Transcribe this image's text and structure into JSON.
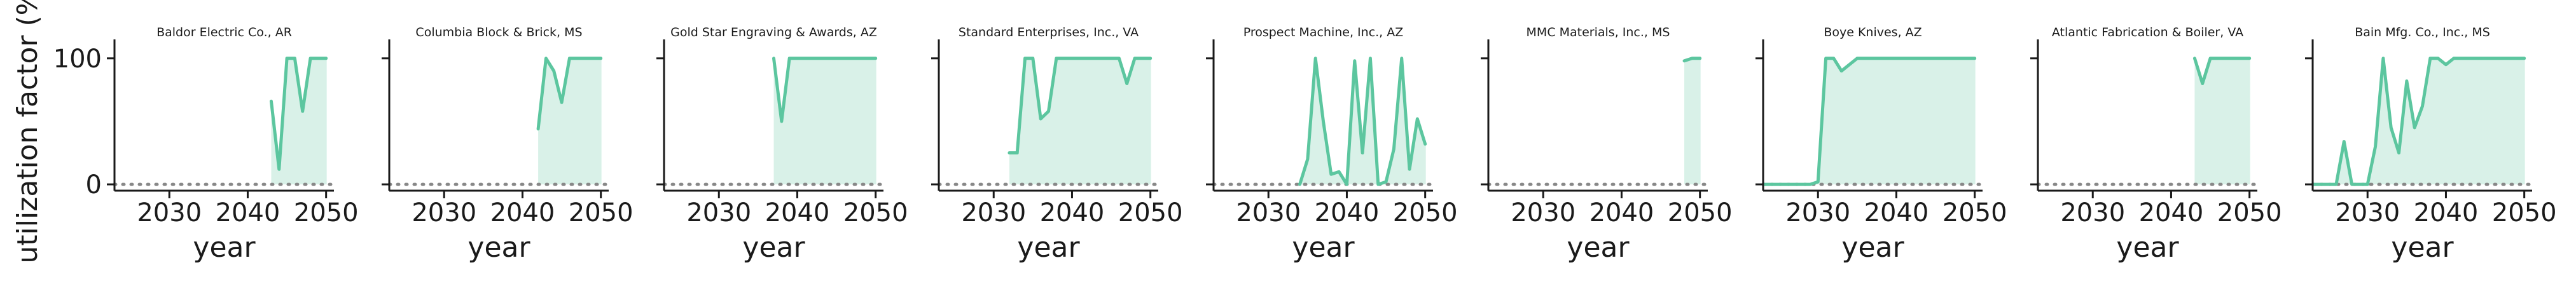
{
  "figure": {
    "ylabel": "utilization factor (%)",
    "line_color": "#5cc69f",
    "fill_color": "#d9f1e8",
    "zero_line_color": "#888888"
  },
  "chart_data": [
    {
      "type": "area",
      "title": "Baldor Electric Co., AR",
      "xlabel": "year",
      "xticks": [
        2030,
        2040,
        2050
      ],
      "yticks": [
        0,
        100
      ],
      "xlim": [
        2023,
        2051
      ],
      "ylim": [
        -5,
        112
      ],
      "x": [
        2043,
        2044,
        2045,
        2046,
        2047,
        2048,
        2049,
        2050
      ],
      "y": [
        66,
        12,
        100,
        100,
        58,
        100,
        100,
        100
      ]
    },
    {
      "type": "area",
      "title": "Columbia Block & Brick, MS",
      "xlabel": "year",
      "xticks": [
        2030,
        2040,
        2050
      ],
      "yticks": [
        0,
        100
      ],
      "xlim": [
        2023,
        2051
      ],
      "ylim": [
        -5,
        112
      ],
      "x": [
        2042,
        2043,
        2044,
        2045,
        2046,
        2047,
        2048,
        2049,
        2050
      ],
      "y": [
        44,
        100,
        90,
        65,
        100,
        100,
        100,
        100,
        100
      ]
    },
    {
      "type": "area",
      "title": "Gold Star Engraving & Awards, AZ",
      "xlabel": "year",
      "xticks": [
        2030,
        2040,
        2050
      ],
      "yticks": [
        0,
        100
      ],
      "xlim": [
        2023,
        2051
      ],
      "ylim": [
        -5,
        112
      ],
      "x": [
        2037,
        2038,
        2039,
        2040,
        2041,
        2042,
        2043,
        2044,
        2045,
        2046,
        2047,
        2048,
        2049,
        2050
      ],
      "y": [
        100,
        50,
        100,
        100,
        100,
        100,
        100,
        100,
        100,
        100,
        100,
        100,
        100,
        100
      ]
    },
    {
      "type": "area",
      "title": "Standard Enterprises, Inc., VA",
      "xlabel": "year",
      "xticks": [
        2030,
        2040,
        2050
      ],
      "yticks": [
        0,
        100
      ],
      "xlim": [
        2023,
        2051
      ],
      "ylim": [
        -5,
        112
      ],
      "x": [
        2032,
        2033,
        2034,
        2035,
        2036,
        2037,
        2038,
        2039,
        2040,
        2041,
        2042,
        2043,
        2044,
        2045,
        2046,
        2047,
        2048,
        2049,
        2050
      ],
      "y": [
        25,
        25,
        100,
        100,
        52,
        58,
        100,
        100,
        100,
        100,
        100,
        100,
        100,
        100,
        100,
        80,
        100,
        100,
        100
      ]
    },
    {
      "type": "area",
      "title": "Prospect Machine, Inc., AZ",
      "xlabel": "year",
      "xticks": [
        2030,
        2040,
        2050
      ],
      "yticks": [
        0,
        100
      ],
      "xlim": [
        2023,
        2051
      ],
      "ylim": [
        -5,
        112
      ],
      "x": [
        2034,
        2035,
        2036,
        2037,
        2038,
        2039,
        2040,
        2041,
        2042,
        2043,
        2044,
        2045,
        2046,
        2047,
        2048,
        2049,
        2050
      ],
      "y": [
        0,
        20,
        100,
        50,
        8,
        10,
        0,
        98,
        25,
        100,
        0,
        2,
        28,
        100,
        12,
        52,
        32
      ]
    },
    {
      "type": "area",
      "title": "MMC Materials, Inc., MS",
      "xlabel": "year",
      "xticks": [
        2030,
        2040,
        2050
      ],
      "yticks": [
        0,
        100
      ],
      "xlim": [
        2023,
        2051
      ],
      "ylim": [
        -5,
        112
      ],
      "x": [
        2048,
        2049,
        2050
      ],
      "y": [
        98,
        100,
        100
      ]
    },
    {
      "type": "area",
      "title": "Boye Knives, AZ",
      "xlabel": "year",
      "xticks": [
        2030,
        2040,
        2050
      ],
      "yticks": [
        0,
        100
      ],
      "xlim": [
        2023,
        2051
      ],
      "ylim": [
        -5,
        112
      ],
      "x": [
        2023,
        2024,
        2025,
        2026,
        2027,
        2028,
        2029,
        2030,
        2031,
        2032,
        2033,
        2034,
        2035,
        2036,
        2037,
        2038,
        2039,
        2040,
        2041,
        2042,
        2043,
        2044,
        2045,
        2046,
        2047,
        2048,
        2049,
        2050
      ],
      "y": [
        0,
        0,
        0,
        0,
        0,
        0,
        0,
        2,
        100,
        100,
        90,
        95,
        100,
        100,
        100,
        100,
        100,
        100,
        100,
        100,
        100,
        100,
        100,
        100,
        100,
        100,
        100,
        100
      ]
    },
    {
      "type": "area",
      "title": "Atlantic Fabrication & Boiler, VA",
      "xlabel": "year",
      "xticks": [
        2030,
        2040,
        2050
      ],
      "yticks": [
        0,
        100
      ],
      "xlim": [
        2023,
        2051
      ],
      "ylim": [
        -5,
        112
      ],
      "x": [
        2043,
        2044,
        2045,
        2046,
        2047,
        2048,
        2049,
        2050
      ],
      "y": [
        100,
        80,
        100,
        100,
        100,
        100,
        100,
        100
      ]
    },
    {
      "type": "area",
      "title": "Bain Mfg. Co., Inc., MS",
      "xlabel": "year",
      "xticks": [
        2030,
        2040,
        2050
      ],
      "yticks": [
        0,
        100
      ],
      "xlim": [
        2023,
        2051
      ],
      "ylim": [
        -5,
        112
      ],
      "x": [
        2023,
        2024,
        2025,
        2026,
        2027,
        2028,
        2029,
        2030,
        2031,
        2032,
        2033,
        2034,
        2035,
        2036,
        2037,
        2038,
        2039,
        2040,
        2041,
        2042,
        2043,
        2044,
        2045,
        2046,
        2047,
        2048,
        2049,
        2050
      ],
      "y": [
        0,
        0,
        0,
        0,
        34,
        0,
        0,
        0,
        30,
        100,
        45,
        25,
        82,
        45,
        62,
        100,
        100,
        95,
        100,
        100,
        100,
        100,
        100,
        100,
        100,
        100,
        100,
        100
      ]
    }
  ]
}
